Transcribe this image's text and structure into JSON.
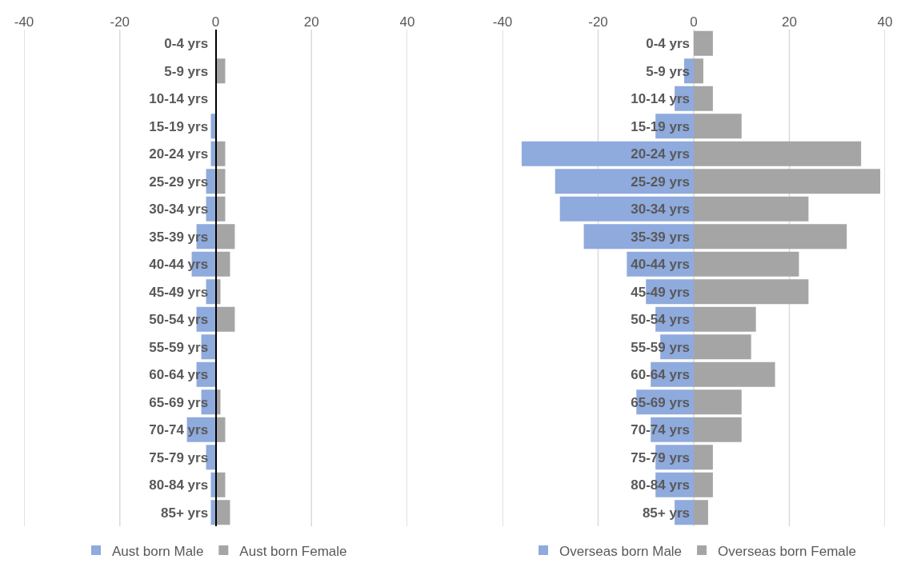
{
  "chart_data": [
    {
      "type": "bar",
      "orientation": "horizontal",
      "categories": [
        "0-4 yrs",
        "5-9 yrs",
        "10-14 yrs",
        "15-19 yrs",
        "20-24 yrs",
        "25-29 yrs",
        "30-34 yrs",
        "35-39 yrs",
        "40-44 yrs",
        "45-49 yrs",
        "50-54 yrs",
        "55-59 yrs",
        "60-64 yrs",
        "65-69 yrs",
        "70-74 yrs",
        "75-79 yrs",
        "80-84 yrs",
        "85+ yrs"
      ],
      "series": [
        {
          "name": "Aust born Male",
          "color": "#8faadc",
          "values": [
            0,
            0,
            0,
            -1,
            -1,
            -2,
            -2,
            -4,
            -5,
            -2,
            -4,
            -3,
            -4,
            -3,
            -6,
            -2,
            -1,
            -1
          ]
        },
        {
          "name": "Aust born Female",
          "color": "#a5a5a5",
          "values": [
            0,
            2,
            0,
            0,
            2,
            2,
            2,
            4,
            3,
            1,
            4,
            0,
            0,
            1,
            2,
            0,
            2,
            3
          ]
        }
      ],
      "xlim": [
        -40,
        40
      ],
      "xticks": [
        -40,
        -20,
        0,
        20,
        40
      ],
      "grid": "x",
      "legend": "bottom",
      "stacked": true
    },
    {
      "type": "bar",
      "orientation": "horizontal",
      "categories": [
        "0-4 yrs",
        "5-9 yrs",
        "10-14 yrs",
        "15-19 yrs",
        "20-24 yrs",
        "25-29 yrs",
        "30-34 yrs",
        "35-39 yrs",
        "40-44 yrs",
        "45-49 yrs",
        "50-54 yrs",
        "55-59 yrs",
        "60-64 yrs",
        "65-69 yrs",
        "70-74 yrs",
        "75-79 yrs",
        "80-84 yrs",
        "85+ yrs"
      ],
      "series": [
        {
          "name": "Overseas born Male",
          "color": "#8faadc",
          "values": [
            0,
            -2,
            -4,
            -8,
            -36,
            -29,
            -28,
            -23,
            -14,
            -10,
            -8,
            -7,
            -9,
            -12,
            -9,
            -8,
            -8,
            -4
          ]
        },
        {
          "name": "Overseas born Female",
          "color": "#a5a5a5",
          "values": [
            4,
            2,
            4,
            10,
            35,
            39,
            24,
            32,
            22,
            24,
            13,
            12,
            17,
            10,
            10,
            4,
            4,
            3
          ]
        }
      ],
      "xlim": [
        -40,
        40
      ],
      "xticks": [
        -40,
        -20,
        0,
        20,
        40
      ],
      "grid": "x",
      "legend": "bottom",
      "stacked": true
    }
  ]
}
